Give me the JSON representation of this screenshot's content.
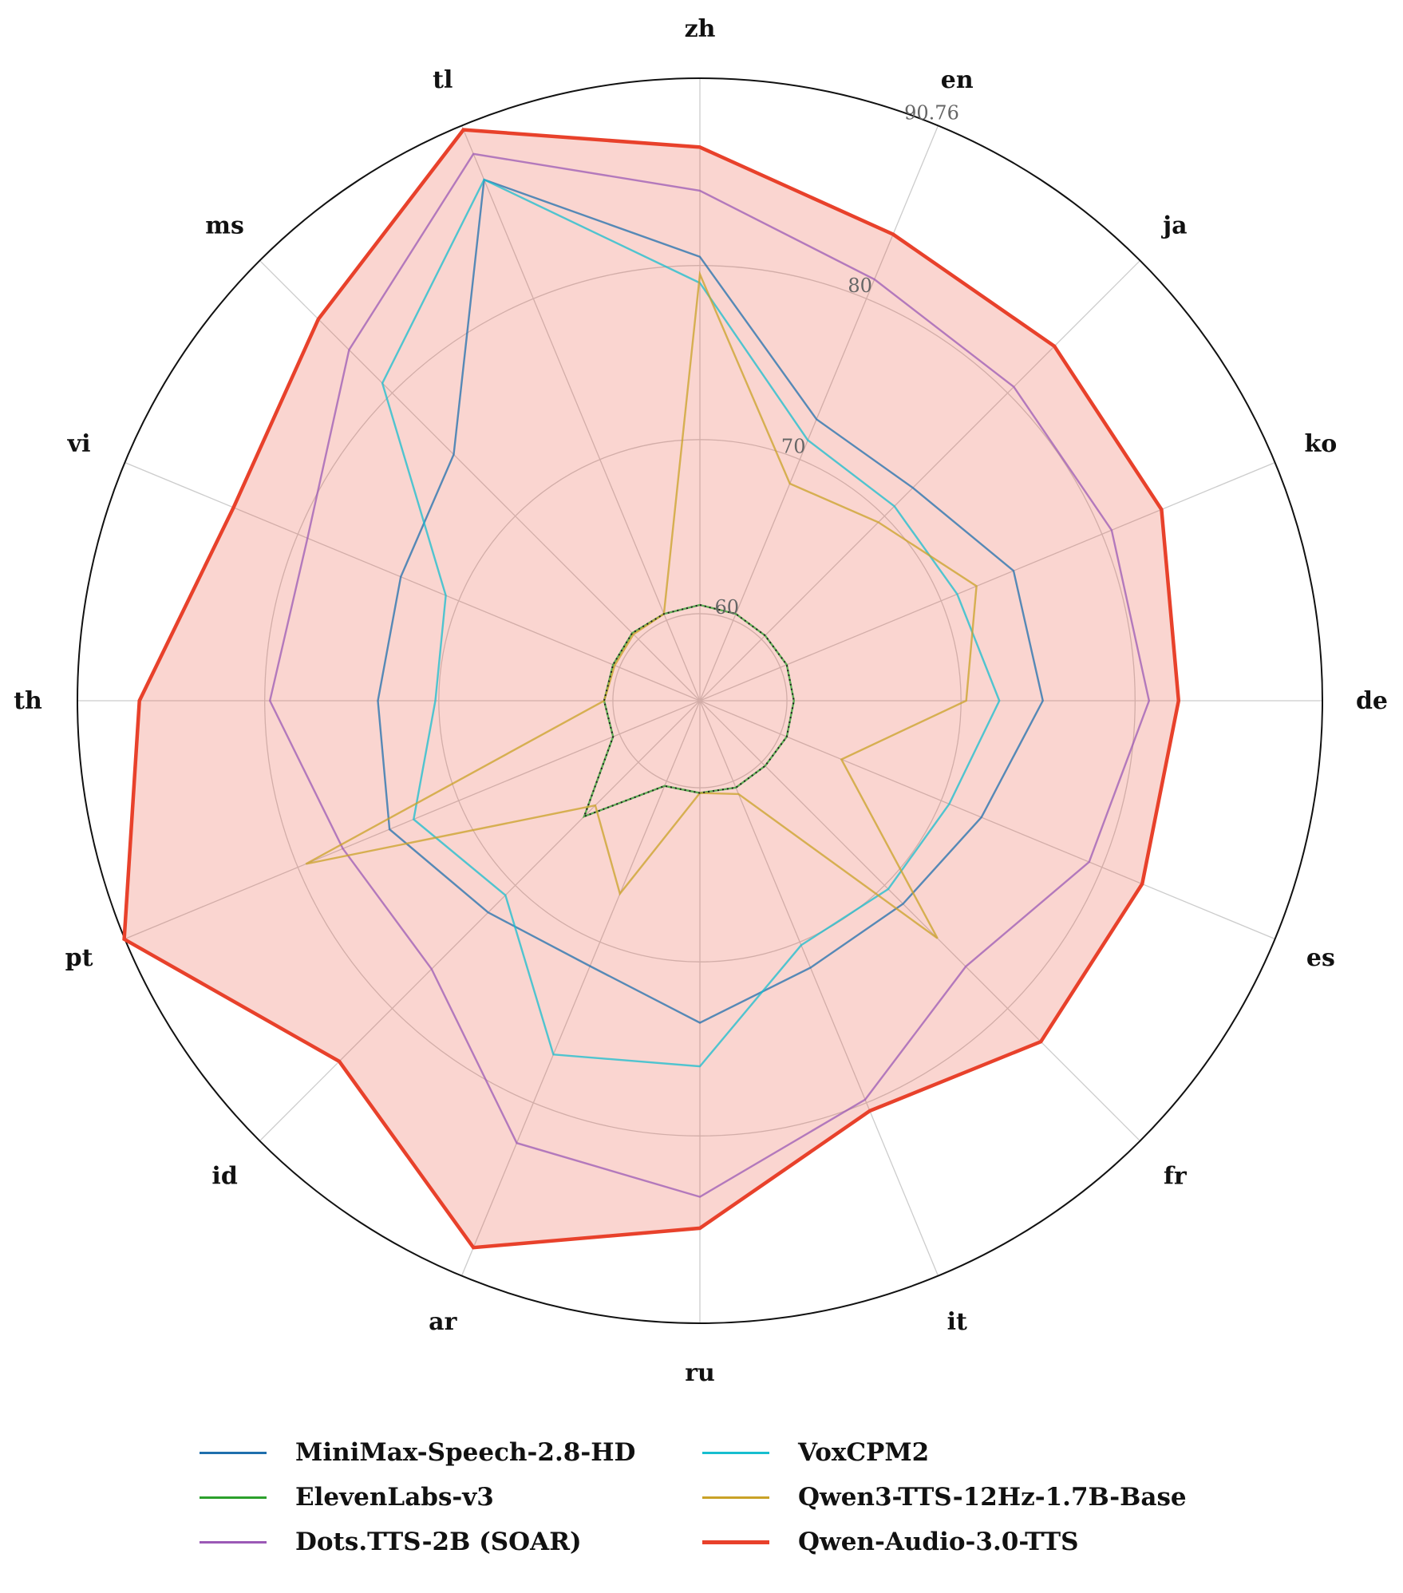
{
  "chart_data": {
    "type": "radar",
    "categories": [
      "zh",
      "en",
      "ja",
      "ko",
      "de",
      "es",
      "fr",
      "it",
      "ru",
      "ar",
      "id",
      "pt",
      "th",
      "vi",
      "ms",
      "tl"
    ],
    "r_ticks": [
      60,
      70,
      80
    ],
    "r_max_label": "90.76",
    "r_min": 55,
    "r_max": 90.76,
    "grid": true,
    "legend_position": "bottom",
    "series": [
      {
        "name": "MiniMax-Speech-2.8-HD",
        "color": "#1f6fad",
        "values": [
          80.5,
          72.5,
          72.3,
          74.5,
          74.7,
          72.5,
          71.5,
          71.6,
          73.5,
          71.5,
          72.2,
          74.3,
          73.5,
          73.6,
          75.0,
          87.4
        ]
      },
      {
        "name": "ElevenLabs-v3",
        "color": "#2ca02c",
        "values": [
          60.5,
          60.4,
          60.3,
          60.4,
          60.4,
          60.4,
          60.3,
          60.4,
          60.3,
          60.3,
          64.4,
          60.4,
          60.5,
          60.4,
          60.5,
          60.4
        ]
      },
      {
        "name": "Dots.TTS-2B (SOAR)",
        "color": "#9b59b6",
        "values": [
          84.3,
          81.2,
          80.5,
          80.6,
          80.8,
          79.2,
          76.6,
          79.8,
          83.5,
          82.5,
          76.8,
          77.2,
          79.7,
          79.4,
          83.5,
          89.0
        ]
      },
      {
        "name": "VoxCPM2",
        "color": "#17becf",
        "values": [
          79.0,
          71.2,
          70.8,
          71.0,
          72.2,
          70.5,
          70.3,
          70.2,
          76.0,
          77.0,
          70.8,
          72.8,
          70.2,
          70.8,
          80.8,
          87.4
        ]
      },
      {
        "name": "Qwen3-TTS-12Hz-1.7B-Base",
        "color": "#c9a227",
        "values": [
          79.5,
          68.5,
          69.5,
          72.2,
          70.3,
          63.8,
          74.3,
          60.8,
          60.3,
          67.0,
          63.5,
          79.5,
          60.5,
          60.3,
          60.4,
          60.4
        ]
      },
      {
        "name": "Qwen-Audio-3.0-TTS",
        "color": "#e8412b",
        "fill": true,
        "values": [
          86.8,
          84.0,
          83.8,
          83.7,
          82.5,
          82.5,
          82.7,
          80.5,
          85.3,
          89.0,
          84.3,
          90.8,
          87.2,
          84.0,
          86.0,
          90.5
        ]
      }
    ]
  }
}
